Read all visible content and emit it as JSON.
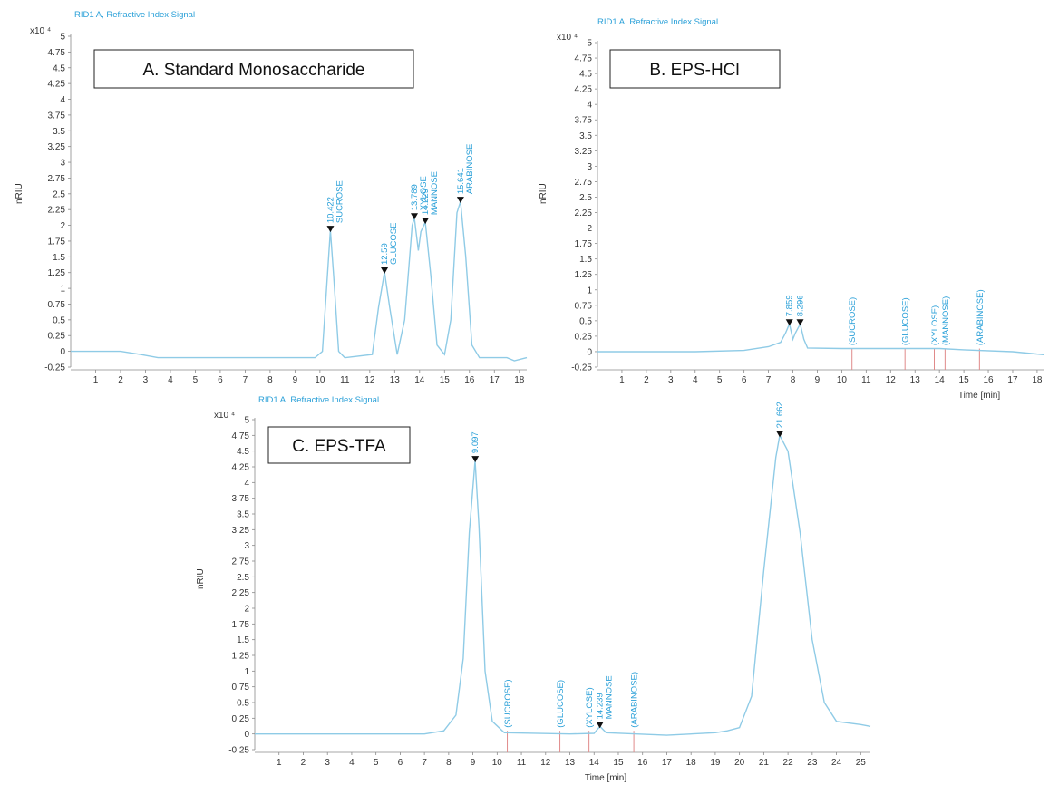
{
  "colors": {
    "signal": "#8fcbe6",
    "label": "#2aa0d8",
    "marker": "#111111",
    "ref": "#e08a8a",
    "axis": "#8a8a8a"
  },
  "chart_data": [
    {
      "id": "A",
      "type": "line",
      "header": "RID1 A, Refractive Index Signal",
      "panel_title": "A. Standard Monosaccharide",
      "ylabel": "nRIU",
      "y_multiplier": "x10 ⁴",
      "xlabel": "",
      "xlim": [
        0,
        18.3
      ],
      "ylim": [
        -0.25,
        5
      ],
      "x_ticks": [
        1,
        2,
        3,
        4,
        5,
        6,
        7,
        8,
        9,
        10,
        11,
        12,
        13,
        14,
        15,
        16,
        17,
        18
      ],
      "y_ticks": [
        "-0.25",
        "0",
        "0.25",
        "0.5",
        "0.75",
        "1",
        "1.25",
        "1.5",
        "1.75",
        "2",
        "2.25",
        "2.5",
        "2.75",
        "3",
        "3.25",
        "3.5",
        "3.75",
        "4",
        "4.25",
        "4.5",
        "4.75",
        "5"
      ],
      "trace": [
        [
          0,
          0
        ],
        [
          1,
          0
        ],
        [
          2,
          0
        ],
        [
          2.8,
          -0.05
        ],
        [
          3.5,
          -0.1
        ],
        [
          5,
          -0.1
        ],
        [
          9.8,
          -0.1
        ],
        [
          10.1,
          0
        ],
        [
          10.3,
          1.2
        ],
        [
          10.42,
          1.92
        ],
        [
          10.55,
          1.2
        ],
        [
          10.75,
          0
        ],
        [
          11,
          -0.1
        ],
        [
          12.1,
          -0.05
        ],
        [
          12.35,
          0.7
        ],
        [
          12.59,
          1.26
        ],
        [
          12.8,
          0.7
        ],
        [
          13.1,
          -0.05
        ],
        [
          13.4,
          0.5
        ],
        [
          13.7,
          2.0
        ],
        [
          13.79,
          2.12
        ],
        [
          13.95,
          1.6
        ],
        [
          14.05,
          1.9
        ],
        [
          14.23,
          2.05
        ],
        [
          14.45,
          1.2
        ],
        [
          14.7,
          0.1
        ],
        [
          15,
          -0.05
        ],
        [
          15.25,
          0.5
        ],
        [
          15.5,
          2.2
        ],
        [
          15.64,
          2.38
        ],
        [
          15.85,
          1.5
        ],
        [
          16.1,
          0.1
        ],
        [
          16.4,
          -0.1
        ],
        [
          17.5,
          -0.1
        ],
        [
          17.8,
          -0.15
        ],
        [
          18.3,
          -0.1
        ]
      ],
      "peaks": [
        {
          "x": 10.422,
          "y": 1.92,
          "rt": "10.422",
          "name": "SUCROSE"
        },
        {
          "x": 12.59,
          "y": 1.26,
          "rt": "12.59",
          "name": "GLUCOSE"
        },
        {
          "x": 13.789,
          "y": 2.12,
          "rt": "13.789",
          "name": "XYLOSE"
        },
        {
          "x": 14.229,
          "y": 2.05,
          "rt": "14.229",
          "name": "MANNOSE"
        },
        {
          "x": 15.641,
          "y": 2.38,
          "rt": "15.641",
          "name": "ARABINOSE"
        }
      ],
      "ref_lines": []
    },
    {
      "id": "B",
      "type": "line",
      "header": "RID1 A, Refractive Index Signal",
      "panel_title": "B. EPS-HCl",
      "ylabel": "nRIU",
      "y_multiplier": "x10 ⁴",
      "xlabel": "Time [min]",
      "xlim": [
        0,
        18.3
      ],
      "ylim": [
        -0.25,
        5
      ],
      "x_ticks": [
        1,
        2,
        3,
        4,
        5,
        6,
        7,
        8,
        9,
        10,
        11,
        12,
        13,
        14,
        15,
        16,
        17,
        18
      ],
      "y_ticks": [
        "-0.25",
        "0",
        "0.25",
        "0.5",
        "0.75",
        "1",
        "1.25",
        "1.5",
        "1.75",
        "2",
        "2.25",
        "2.5",
        "2.75",
        "3",
        "3.25",
        "3.5",
        "3.75",
        "4",
        "4.25",
        "4.5",
        "4.75",
        "5"
      ],
      "trace": [
        [
          0,
          0
        ],
        [
          4,
          0
        ],
        [
          6,
          0.02
        ],
        [
          7,
          0.08
        ],
        [
          7.5,
          0.15
        ],
        [
          7.7,
          0.3
        ],
        [
          7.86,
          0.45
        ],
        [
          8.0,
          0.2
        ],
        [
          8.1,
          0.3
        ],
        [
          8.3,
          0.45
        ],
        [
          8.45,
          0.2
        ],
        [
          8.6,
          0.06
        ],
        [
          10,
          0.05
        ],
        [
          12,
          0.05
        ],
        [
          14,
          0.05
        ],
        [
          15,
          0.03
        ],
        [
          17,
          0
        ],
        [
          18.3,
          -0.05
        ]
      ],
      "peaks": [
        {
          "x": 7.859,
          "y": 0.45,
          "rt": "7.859",
          "name": ""
        },
        {
          "x": 8.296,
          "y": 0.45,
          "rt": "8.296",
          "name": ""
        }
      ],
      "ref_lines": [
        {
          "x": 10.42,
          "name": "(SUCROSE)"
        },
        {
          "x": 12.59,
          "name": "(GLUCOSE)"
        },
        {
          "x": 13.79,
          "name": "(XYLOSE)"
        },
        {
          "x": 14.23,
          "name": "(MANNOSE)"
        },
        {
          "x": 15.64,
          "name": "(ARABINOSE)"
        }
      ]
    },
    {
      "id": "C",
      "type": "line",
      "header": "RID1 A. Refractive Index Signal",
      "panel_title": "C. EPS-TFA",
      "ylabel": "nRIU",
      "y_multiplier": "x10 ⁴",
      "xlabel": "Time [min]",
      "xlim": [
        0,
        25.4
      ],
      "ylim": [
        -0.25,
        5
      ],
      "x_ticks": [
        1,
        2,
        3,
        4,
        5,
        6,
        7,
        8,
        9,
        10,
        11,
        12,
        13,
        14,
        15,
        16,
        17,
        18,
        19,
        20,
        21,
        22,
        23,
        24,
        25
      ],
      "y_ticks": [
        "-0.25",
        "0",
        "0.25",
        "0.5",
        "0.75",
        "1",
        "1.25",
        "1.5",
        "1.75",
        "2",
        "2.25",
        "2.5",
        "2.75",
        "3",
        "3.25",
        "3.5",
        "3.75",
        "4",
        "4.25",
        "4.5",
        "4.75",
        "5"
      ],
      "trace": [
        [
          0,
          0
        ],
        [
          7,
          0
        ],
        [
          7.8,
          0.05
        ],
        [
          8.3,
          0.3
        ],
        [
          8.6,
          1.2
        ],
        [
          8.85,
          3.2
        ],
        [
          9.09,
          4.35
        ],
        [
          9.25,
          3.3
        ],
        [
          9.5,
          1.0
        ],
        [
          9.8,
          0.2
        ],
        [
          10.3,
          0.02
        ],
        [
          13,
          0
        ],
        [
          14,
          0.01
        ],
        [
          14.24,
          0.12
        ],
        [
          14.5,
          0.02
        ],
        [
          17,
          -0.02
        ],
        [
          19,
          0.02
        ],
        [
          19.5,
          0.05
        ],
        [
          20,
          0.1
        ],
        [
          20.5,
          0.6
        ],
        [
          21,
          2.6
        ],
        [
          21.5,
          4.4
        ],
        [
          21.66,
          4.75
        ],
        [
          22,
          4.5
        ],
        [
          22.5,
          3.2
        ],
        [
          23,
          1.5
        ],
        [
          23.5,
          0.5
        ],
        [
          24,
          0.2
        ],
        [
          25,
          0.15
        ],
        [
          25.4,
          0.12
        ]
      ],
      "peaks": [
        {
          "x": 9.097,
          "y": 4.35,
          "rt": "9.097",
          "name": ""
        },
        {
          "x": 14.239,
          "y": 0.12,
          "rt": "14.239",
          "name": "MANNOSE"
        },
        {
          "x": 21.662,
          "y": 4.75,
          "rt": "21.662",
          "name": ""
        }
      ],
      "ref_lines": [
        {
          "x": 10.42,
          "name": "(SUCROSE)"
        },
        {
          "x": 12.59,
          "name": "(GLUCOSE)"
        },
        {
          "x": 13.79,
          "name": "(XYLOSE)"
        },
        {
          "x": 15.64,
          "name": "(ARABINOSE)"
        }
      ]
    }
  ]
}
